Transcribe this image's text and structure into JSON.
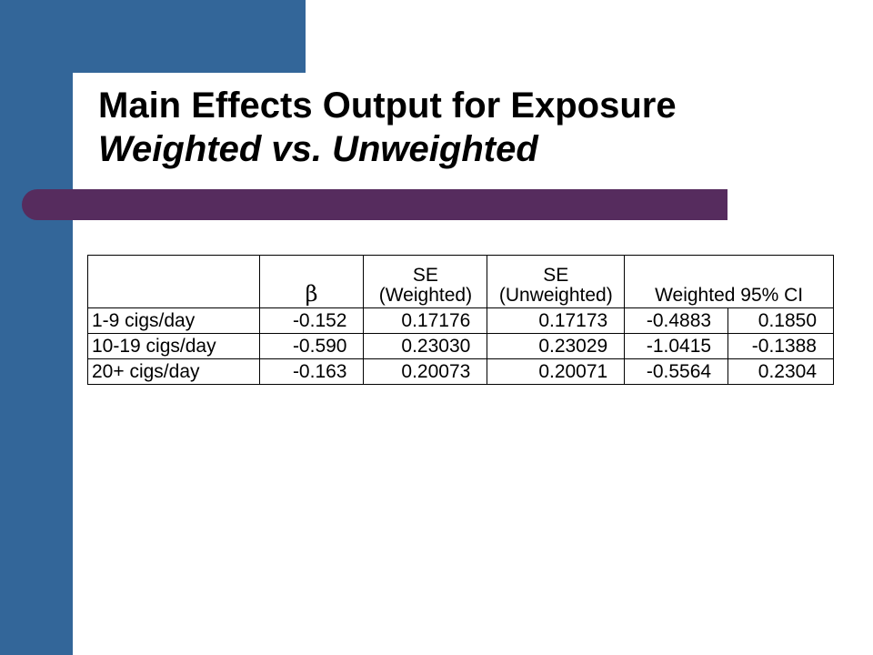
{
  "slide": {
    "title_line1": "Main Effects Output for Exposure",
    "title_line2": "Weighted vs. Unweighted"
  },
  "table": {
    "headers": {
      "beta": "β",
      "se_weighted_line1": "SE",
      "se_weighted_line2": "(Weighted)",
      "se_unweighted_line1": "SE",
      "se_unweighted_line2": "(Unweighted)",
      "ci": "Weighted 95% CI"
    },
    "rows": [
      {
        "label": "1-9 cigs/day",
        "beta": "-0.152",
        "se_w": "0.17176",
        "se_u": "0.17173",
        "ci_low": "-0.4883",
        "ci_high": "0.1850"
      },
      {
        "label": "10-19 cigs/day",
        "beta": "-0.590",
        "se_w": "0.23030",
        "se_u": "0.23029",
        "ci_low": "-1.0415",
        "ci_high": "-0.1388"
      },
      {
        "label": "20+ cigs/day",
        "beta": "-0.163",
        "se_w": "0.20073",
        "se_u": "0.20071",
        "ci_low": "-0.5564",
        "ci_high": "0.2304"
      }
    ]
  },
  "colors": {
    "accent_blue": "#336699",
    "accent_purple": "#562c5e"
  }
}
